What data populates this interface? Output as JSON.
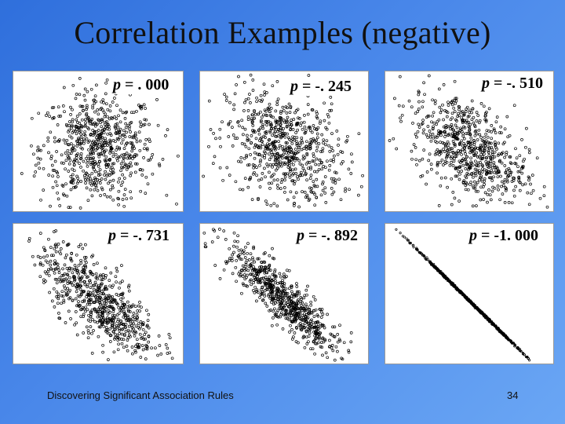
{
  "slide": {
    "title": "Correlation Examples (negative)",
    "footer_text": "Discovering Significant Association Rules",
    "page_number": "34"
  },
  "colors": {
    "background_top_left": "#2f6fdc",
    "background_bottom_right": "#6aa6f4",
    "panel": "#ffffff",
    "points": "#000000"
  },
  "chart_data": [
    {
      "type": "scatter",
      "symbol": "p",
      "value_text": " = . 000",
      "correlation": 0.0
    },
    {
      "type": "scatter",
      "symbol": "p",
      "value_text": " = -. 245",
      "correlation": -0.245
    },
    {
      "type": "scatter",
      "symbol": "p",
      "value_text": " = -. 510",
      "correlation": -0.51
    },
    {
      "type": "scatter",
      "symbol": "p",
      "value_text": " = -. 731",
      "correlation": -0.731
    },
    {
      "type": "scatter",
      "symbol": "p",
      "value_text": " = -. 892",
      "correlation": -0.892
    },
    {
      "type": "scatter",
      "symbol": "p",
      "value_text": " = -1. 000",
      "correlation": -1.0
    }
  ]
}
